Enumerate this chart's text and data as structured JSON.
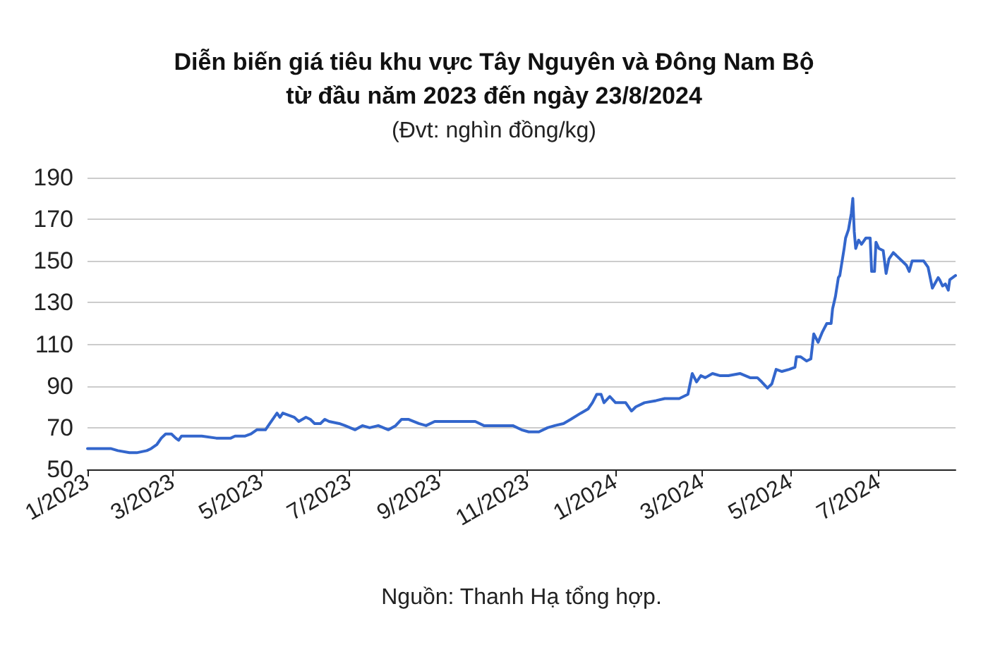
{
  "chart_data": {
    "type": "line",
    "title": "Diễn biến giá tiêu khu vực Tây Nguyên và Đông Nam Bộ\ntừ đầu năm 2023 đến ngày 23/8/2024",
    "subtitle": "(Đvt: nghìn đồng/kg)",
    "annotations": [
      "Nguồn: Thanh Hạ tổng hợp."
    ],
    "color": "#3366cc",
    "x": [
      "2023-01-01",
      "2023-01-11",
      "2023-01-17",
      "2023-01-22",
      "2023-01-30",
      "2023-02-04",
      "2023-02-11",
      "2023-02-14",
      "2023-02-18",
      "2023-02-21",
      "2023-02-24",
      "2023-02-28",
      "2023-03-03",
      "2023-03-05",
      "2023-03-07",
      "2023-03-21",
      "2023-03-31",
      "2023-04-10",
      "2023-04-13",
      "2023-04-20",
      "2023-04-24",
      "2023-04-28",
      "2023-05-04",
      "2023-05-07",
      "2023-05-12",
      "2023-05-14",
      "2023-05-16",
      "2023-05-20",
      "2023-05-24",
      "2023-05-27",
      "2023-06-01",
      "2023-06-04",
      "2023-06-07",
      "2023-06-11",
      "2023-06-14",
      "2023-06-17",
      "2023-06-24",
      "2023-06-28",
      "2023-07-05",
      "2023-07-10",
      "2023-07-15",
      "2023-07-21",
      "2023-07-28",
      "2023-08-02",
      "2023-08-06",
      "2023-08-11",
      "2023-08-18",
      "2023-08-23",
      "2023-08-29",
      "2023-09-05",
      "2023-09-11",
      "2023-09-19",
      "2023-09-26",
      "2023-10-02",
      "2023-10-12",
      "2023-10-22",
      "2023-10-28",
      "2023-11-02",
      "2023-11-09",
      "2023-11-15",
      "2023-11-20",
      "2023-11-26",
      "2023-12-01",
      "2023-12-08",
      "2023-12-13",
      "2023-12-16",
      "2023-12-19",
      "2023-12-22",
      "2023-12-24",
      "2023-12-28",
      "2024-01-01",
      "2024-01-04",
      "2024-01-08",
      "2024-01-12",
      "2024-01-15",
      "2024-01-21",
      "2024-01-29",
      "2024-02-04",
      "2024-02-14",
      "2024-02-20",
      "2024-02-23",
      "2024-02-26",
      "2024-02-29",
      "2024-03-03",
      "2024-03-08",
      "2024-03-13",
      "2024-03-19",
      "2024-03-27",
      "2024-04-03",
      "2024-04-08",
      "2024-04-11",
      "2024-04-15",
      "2024-04-18",
      "2024-04-21",
      "2024-04-25",
      "2024-04-30",
      "2024-05-04",
      "2024-05-05",
      "2024-05-08",
      "2024-05-12",
      "2024-05-15",
      "2024-05-17",
      "2024-05-20",
      "2024-05-23",
      "2024-05-26",
      "2024-05-29",
      "2024-05-30",
      "2024-06-01",
      "2024-06-03",
      "2024-06-04",
      "2024-06-07",
      "2024-06-08",
      "2024-06-10",
      "2024-06-12",
      "2024-06-13",
      "2024-06-14",
      "2024-06-15",
      "2024-06-17",
      "2024-06-19",
      "2024-06-22",
      "2024-06-25",
      "2024-06-26",
      "2024-06-28",
      "2024-06-29",
      "2024-07-01",
      "2024-07-04",
      "2024-07-06",
      "2024-07-08",
      "2024-07-11",
      "2024-07-14",
      "2024-07-17",
      "2024-07-20",
      "2024-07-22",
      "2024-07-24",
      "2024-08-01",
      "2024-08-04",
      "2024-08-07",
      "2024-08-11",
      "2024-08-12",
      "2024-08-14",
      "2024-08-16",
      "2024-08-18",
      "2024-08-19",
      "2024-08-23"
    ],
    "values": [
      60,
      60,
      60,
      59,
      58,
      58,
      59,
      60,
      62,
      65,
      67,
      67,
      65,
      64,
      66,
      66,
      65,
      65,
      66,
      66,
      67,
      69,
      69,
      72,
      77,
      75,
      77,
      76,
      75,
      73,
      75,
      74,
      72,
      72,
      74,
      73,
      72,
      71,
      69,
      71,
      70,
      71,
      69,
      71,
      74,
      74,
      72,
      71,
      73,
      73,
      73,
      73,
      73,
      71,
      71,
      71,
      69,
      68,
      68,
      70,
      71,
      72,
      74,
      77,
      79,
      82,
      86,
      86,
      82,
      85,
      82,
      82,
      82,
      78,
      80,
      82,
      83,
      84,
      84,
      86,
      96,
      92,
      95,
      94,
      96,
      95,
      95,
      96,
      94,
      94,
      92,
      89,
      91,
      98,
      97,
      98,
      99,
      104,
      104,
      102,
      103,
      115,
      111,
      116,
      120,
      120,
      127,
      133,
      142,
      143,
      156,
      161,
      165,
      173,
      180,
      164,
      156,
      160,
      158,
      161,
      161,
      145,
      145,
      159,
      156,
      155,
      144,
      151,
      154,
      152,
      150,
      148,
      145,
      150,
      150,
      147,
      137,
      142,
      141,
      138,
      139,
      136,
      141,
      143
    ],
    "xlim": [
      "2023-01-01",
      "2024-08-23"
    ],
    "xticks": [
      {
        "value": "2023-01-01",
        "label": "1/2023"
      },
      {
        "value": "2023-03-01",
        "label": "3/2023"
      },
      {
        "value": "2023-05-01",
        "label": "5/2023"
      },
      {
        "value": "2023-07-01",
        "label": "7/2023"
      },
      {
        "value": "2023-09-01",
        "label": "9/2023"
      },
      {
        "value": "2023-11-01",
        "label": "11/2023"
      },
      {
        "value": "2024-01-01",
        "label": "1/2024"
      },
      {
        "value": "2024-03-01",
        "label": "3/2024"
      },
      {
        "value": "2024-05-01",
        "label": "5/2024"
      },
      {
        "value": "2024-07-01",
        "label": "7/2024"
      }
    ],
    "ylim": [
      50,
      190
    ],
    "yticks": [
      50,
      70,
      90,
      110,
      130,
      150,
      170,
      190
    ],
    "grid": "y"
  }
}
